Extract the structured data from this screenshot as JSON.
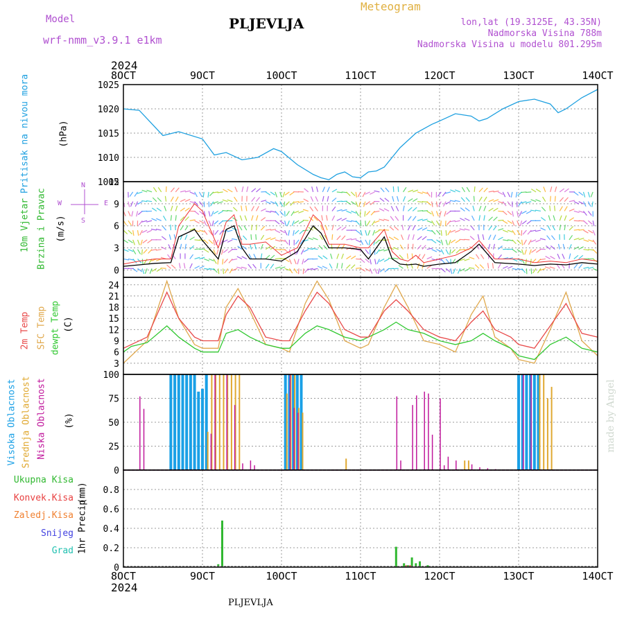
{
  "header": {
    "model_label": "Model",
    "model_name": "wrf-nmm_v3.9.1 e1km",
    "station": "PLJEVLJA",
    "meteogram": "Meteogram",
    "lonlat": "lon,lat (19.3125E, 43.35N)",
    "altitude": "Nadmorska Visina 788m",
    "model_altitude": "Nadmorska Visina u modelu 801.295m",
    "footer_station": "PLJEVLJA",
    "watermark": "made by Angel",
    "year": "2024"
  },
  "colors": {
    "pressure": "#1ea0e0",
    "wind_speed": "#000000",
    "wind_gust": "#ee3333",
    "temp2m": "#e84848",
    "sfc": "#e0a84c",
    "dew": "#30c830",
    "cloud_high": "#1aa0e6",
    "cloud_mid": "#e0a830",
    "cloud_low": "#c0189c",
    "rain_total": "#30b830",
    "rain_conv": "#e84040",
    "rain_frozen": "#f08030",
    "snow": "#4040e0",
    "hail": "#20c0b0",
    "label_purple": "#b050d0",
    "label_gold": "#e0b040"
  },
  "chart_data": [
    {
      "id": "pressure",
      "type": "line",
      "title": "Pritisak na nivou mora",
      "ylabel": "(hPa)",
      "x_ticks": [
        "8OCT",
        "9OCT",
        "10OCT",
        "11OCT",
        "12OCT",
        "13OCT",
        "14OCT"
      ],
      "x_top_year": "2024",
      "xlim_days": [
        8,
        14
      ],
      "ylim": [
        1005,
        1025
      ],
      "yticks": [
        1005,
        1010,
        1015,
        1020,
        1025
      ],
      "grid": true,
      "series": [
        {
          "x": [
            8.0,
            8.2,
            8.5,
            8.7,
            9.0,
            9.15,
            9.3,
            9.5,
            9.7,
            9.9,
            10.0,
            10.2,
            10.4,
            10.5,
            10.6,
            10.7,
            10.8,
            10.9,
            11.0,
            11.1,
            11.2,
            11.3,
            11.5,
            11.7,
            11.9,
            12.0,
            12.2,
            12.4,
            12.5,
            12.6,
            12.8,
            13.0,
            13.2,
            13.4,
            13.5,
            13.6,
            13.8,
            14.0
          ],
          "y": [
            1020,
            1019.7,
            1014.5,
            1015.3,
            1013.8,
            1010.5,
            1011,
            1009.5,
            1010,
            1011.8,
            1011.2,
            1008.5,
            1006.5,
            1005.8,
            1005.4,
            1006.5,
            1007,
            1006,
            1005.8,
            1007,
            1007.2,
            1008,
            1012,
            1015,
            1016.8,
            1017.5,
            1019,
            1018.5,
            1017.5,
            1018,
            1020,
            1021.5,
            1022,
            1021,
            1019.2,
            1020,
            1022.3,
            1024
          ]
        }
      ]
    },
    {
      "id": "wind",
      "type": "line",
      "title": "10m Vjetar",
      "title2": "Brzina i Pravac",
      "ylabel": "(m/s)",
      "direction_legend": {
        "n": "N",
        "w": "W",
        "e": "E",
        "s": "S"
      },
      "xlim_days": [
        8,
        14
      ],
      "ylim": [
        -1,
        12
      ],
      "yticks": [
        0,
        3,
        6,
        9,
        12
      ],
      "grid": true,
      "series": [
        {
          "name": "speed",
          "x": [
            8.0,
            8.2,
            8.4,
            8.6,
            8.7,
            8.9,
            9.0,
            9.2,
            9.3,
            9.4,
            9.5,
            9.6,
            9.8,
            10.0,
            10.2,
            10.4,
            10.5,
            10.6,
            10.8,
            11.0,
            11.1,
            11.3,
            11.4,
            11.5,
            11.6,
            11.7,
            11.8,
            12.0,
            12.2,
            12.4,
            12.5,
            12.7,
            13.0,
            13.2,
            13.4,
            13.6,
            13.8,
            14.0
          ],
          "y": [
            0.5,
            0.7,
            0.9,
            1,
            4.5,
            5.5,
            4,
            1.5,
            5.5,
            6,
            3,
            1.5,
            1.5,
            1.2,
            2.5,
            6,
            5,
            3,
            3,
            2.8,
            1.5,
            4.5,
            1.5,
            0.8,
            0.7,
            0.8,
            0.5,
            0.8,
            1,
            2.5,
            3.5,
            1,
            0.8,
            0.6,
            0.8,
            0.7,
            1,
            0.8
          ]
        },
        {
          "name": "gust",
          "x": [
            8.0,
            8.2,
            8.4,
            8.6,
            8.7,
            8.9,
            9.0,
            9.2,
            9.3,
            9.4,
            9.5,
            9.6,
            9.8,
            10.0,
            10.2,
            10.4,
            10.5,
            10.6,
            10.8,
            11.0,
            11.1,
            11.3,
            11.4,
            11.5,
            11.6,
            11.7,
            11.8,
            12.0,
            12.2,
            12.4,
            12.5,
            12.7,
            13.0,
            13.2,
            13.4,
            13.6,
            13.8,
            14.0
          ],
          "y": [
            0.8,
            1.2,
            1.5,
            1.5,
            6,
            9,
            8,
            3,
            6.5,
            7.5,
            3.5,
            3.5,
            3.8,
            2,
            3,
            7.5,
            6.5,
            3.5,
            3.5,
            3,
            3,
            5.5,
            2.5,
            1.5,
            1.2,
            2,
            1,
            1.5,
            2,
            3,
            4,
            1.5,
            1.5,
            1,
            1.2,
            1,
            1.5,
            1.2
          ]
        }
      ]
    },
    {
      "id": "temperature",
      "type": "line",
      "title": "2m Temp",
      "title2": "SFC Temp",
      "title3": "dewpt Temp",
      "ylabel": "(C)",
      "xlim_days": [
        8,
        14
      ],
      "ylim": [
        0,
        26
      ],
      "yticks": [
        3,
        6,
        9,
        12,
        15,
        18,
        21,
        24
      ],
      "grid": true,
      "series": [
        {
          "name": "2m",
          "x": [
            8.0,
            8.1,
            8.3,
            8.55,
            8.7,
            8.9,
            9.0,
            9.2,
            9.3,
            9.45,
            9.6,
            9.8,
            10.0,
            10.1,
            10.3,
            10.45,
            10.6,
            10.8,
            11.0,
            11.1,
            11.3,
            11.45,
            11.6,
            11.8,
            12.0,
            12.2,
            12.4,
            12.55,
            12.7,
            12.9,
            13.0,
            13.2,
            13.4,
            13.6,
            13.8,
            14.0
          ],
          "y": [
            7,
            8,
            10,
            22,
            15,
            10,
            9,
            9,
            16,
            21,
            18,
            10,
            9,
            9,
            17,
            22,
            19,
            12,
            10,
            10,
            17,
            20,
            17,
            12,
            10,
            9,
            14,
            17,
            12,
            10,
            8,
            7,
            13,
            19,
            11,
            10
          ]
        },
        {
          "name": "sfc",
          "x": [
            8.0,
            8.1,
            8.3,
            8.55,
            8.7,
            8.9,
            9.0,
            9.2,
            9.3,
            9.45,
            9.6,
            9.8,
            10.0,
            10.1,
            10.3,
            10.45,
            10.6,
            10.8,
            11.0,
            11.1,
            11.3,
            11.45,
            11.6,
            11.8,
            12.0,
            12.2,
            12.4,
            12.55,
            12.7,
            12.9,
            13.0,
            13.2,
            13.4,
            13.6,
            13.8,
            14.0
          ],
          "y": [
            3,
            5,
            9,
            25,
            15,
            8,
            7,
            7,
            18,
            23,
            17,
            8,
            7,
            6,
            19,
            25,
            20,
            9,
            7,
            8,
            18,
            24,
            18,
            9,
            8,
            6,
            16,
            21,
            10,
            7,
            4,
            3,
            12,
            22,
            9,
            5
          ]
        },
        {
          "name": "dew",
          "x": [
            8.0,
            8.1,
            8.3,
            8.55,
            8.7,
            8.9,
            9.0,
            9.2,
            9.3,
            9.45,
            9.6,
            9.8,
            10.0,
            10.1,
            10.3,
            10.45,
            10.6,
            10.8,
            11.0,
            11.1,
            11.3,
            11.45,
            11.6,
            11.8,
            12.0,
            12.2,
            12.4,
            12.55,
            12.7,
            12.9,
            13.0,
            13.2,
            13.4,
            13.6,
            13.8,
            14.0
          ],
          "y": [
            6,
            7.5,
            8.5,
            13,
            10,
            7,
            6,
            6,
            11,
            12,
            10,
            8,
            7,
            7,
            11,
            13,
            12,
            10,
            9,
            10,
            12,
            14,
            12,
            11,
            9,
            8,
            9,
            11,
            9,
            7,
            5,
            4,
            8,
            10,
            7,
            6
          ]
        }
      ]
    },
    {
      "id": "clouds",
      "type": "bar",
      "title": "Visoka Oblacnost",
      "title2": "Srednja Oblacnost",
      "title3": "Niska Oblacnost",
      "ylabel": "(%)",
      "xlim_days": [
        8,
        14
      ],
      "ylim": [
        0,
        100
      ],
      "yticks": [
        0,
        25,
        50,
        75,
        100
      ],
      "grid": true,
      "series": [
        {
          "name": "high",
          "x": [
            8.6,
            8.65,
            8.7,
            8.75,
            8.8,
            8.85,
            8.9,
            8.95,
            9.0,
            9.05,
            10.05,
            10.1,
            10.15,
            10.2,
            10.25,
            13.0,
            13.05,
            13.1,
            13.15,
            13.2,
            13.25
          ],
          "y": [
            100,
            100,
            100,
            100,
            100,
            100,
            100,
            82,
            85,
            100,
            100,
            100,
            100,
            100,
            100,
            100,
            100,
            100,
            100,
            100,
            100
          ]
        },
        {
          "name": "mid",
          "x": [
            9.05,
            9.1,
            9.15,
            9.2,
            9.25,
            9.3,
            9.35,
            9.4,
            9.45,
            10.05,
            10.1,
            10.15,
            10.2,
            10.25,
            10.8,
            12.3,
            12.35,
            13.25,
            13.3,
            13.35,
            13.4
          ],
          "y": [
            40,
            100,
            100,
            100,
            100,
            100,
            100,
            100,
            100,
            80,
            100,
            100,
            65,
            60,
            12,
            10,
            10,
            100,
            100,
            75,
            87
          ]
        },
        {
          "name": "low",
          "x": [
            8.2,
            8.25,
            9.1,
            9.15,
            9.3,
            9.4,
            9.5,
            9.6,
            9.65,
            10.1,
            10.15,
            10.2,
            11.45,
            11.5,
            11.65,
            11.7,
            11.8,
            11.85,
            11.9,
            12.0,
            12.05,
            12.1,
            12.2,
            12.4,
            12.5,
            12.6,
            12.7,
            13.05,
            13.15
          ],
          "y": [
            77,
            64,
            38,
            100,
            100,
            68,
            7,
            10,
            5,
            100,
            65,
            60,
            77,
            10,
            68,
            78,
            82,
            80,
            37,
            75,
            5,
            14,
            10,
            6,
            3,
            2,
            1,
            100,
            100
          ]
        }
      ]
    },
    {
      "id": "precip",
      "type": "bar",
      "title": "1hr Precip",
      "ylabel": "(mm)",
      "legend_items": [
        "Ukupna Kisa",
        "Konvek.Kisa",
        "Zaledj.Kisa",
        "Snijeg",
        "Grad"
      ],
      "x_ticks": [
        "8OCT",
        "9OCT",
        "10OCT",
        "11OCT",
        "12OCT",
        "13OCT",
        "14OCT"
      ],
      "x_bottom_year": "2024",
      "xlim_days": [
        8,
        14
      ],
      "ylim": [
        0,
        1
      ],
      "yticks": [
        0,
        0.2,
        0.4,
        0.6,
        0.8
      ],
      "grid": true,
      "series": [
        {
          "name": "total",
          "x": [
            9.2,
            9.25,
            11.45,
            11.55,
            11.6,
            11.65,
            11.7,
            11.75,
            11.85
          ],
          "y": [
            0.03,
            0.48,
            0.21,
            0.04,
            0.02,
            0.1,
            0.04,
            0.06,
            0.02
          ]
        },
        {
          "name": "conv",
          "x": [
            11.55,
            11.6
          ],
          "y": [
            0.02,
            0.02
          ]
        }
      ]
    }
  ]
}
